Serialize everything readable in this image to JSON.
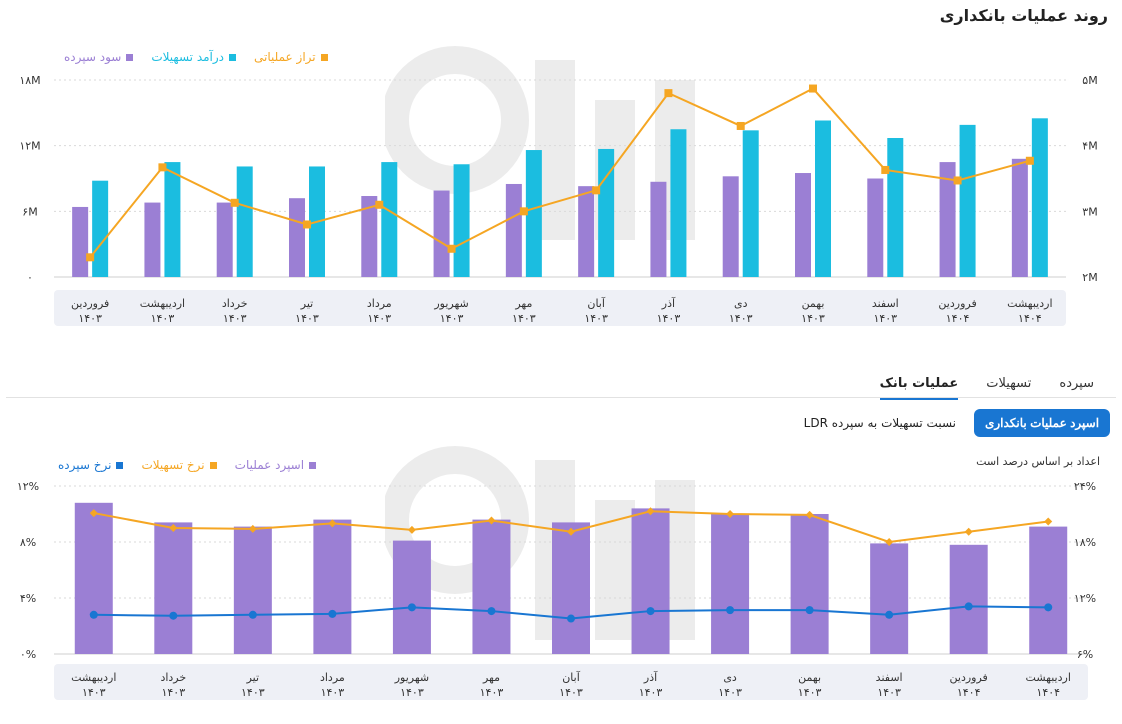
{
  "page_title": "روند عملیات بانکداری",
  "chart_data": [
    {
      "type": "bar",
      "categories": [
        {
          "month": "فروردین",
          "year": "۱۴۰۳"
        },
        {
          "month": "اردیبهشت",
          "year": "۱۴۰۳"
        },
        {
          "month": "خرداد",
          "year": "۱۴۰۳"
        },
        {
          "month": "تیر",
          "year": "۱۴۰۳"
        },
        {
          "month": "مرداد",
          "year": "۱۴۰۳"
        },
        {
          "month": "شهریور",
          "year": "۱۴۰۳"
        },
        {
          "month": "مهر",
          "year": "۱۴۰۳"
        },
        {
          "month": "آبان",
          "year": "۱۴۰۳"
        },
        {
          "month": "آذر",
          "year": "۱۴۰۳"
        },
        {
          "month": "دی",
          "year": "۱۴۰۳"
        },
        {
          "month": "بهمن",
          "year": "۱۴۰۳"
        },
        {
          "month": "اسفند",
          "year": "۱۴۰۳"
        },
        {
          "month": "فروردین",
          "year": "۱۴۰۴"
        },
        {
          "month": "اردیبهشت",
          "year": "۱۴۰۴"
        }
      ],
      "series": [
        {
          "name": "سود سپرده",
          "kind": "bar",
          "axis": "left",
          "color": "#9b7fd4",
          "values": [
            6.4,
            6.8,
            6.8,
            7.2,
            7.4,
            7.9,
            8.5,
            8.3,
            8.7,
            9.2,
            9.5,
            9.0,
            10.5,
            10.8
          ]
        },
        {
          "name": "درآمد تسهیلات",
          "kind": "bar",
          "axis": "left",
          "color": "#1bbde0",
          "values": [
            8.8,
            10.5,
            10.1,
            10.1,
            10.5,
            10.3,
            11.6,
            11.7,
            13.5,
            13.4,
            14.3,
            12.7,
            13.9,
            14.5
          ]
        },
        {
          "name": "تراز عملیاتی",
          "kind": "line",
          "axis": "right",
          "color": "#f5a623",
          "values": [
            2.3,
            3.67,
            3.13,
            2.8,
            3.1,
            2.43,
            3.0,
            3.32,
            4.8,
            4.3,
            4.87,
            3.63,
            3.47,
            3.77
          ]
        }
      ],
      "y_left": {
        "ticks": [
          "۰",
          "۶M",
          "۱۲M",
          "۱۸M"
        ],
        "ylim": [
          0,
          18
        ]
      },
      "y_right": {
        "ticks": [
          "۲M",
          "۳M",
          "۴M",
          "۵M"
        ],
        "ylim": [
          2,
          5
        ]
      },
      "legend_position": "top-right",
      "grid": true
    },
    {
      "type": "bar",
      "categories": [
        {
          "month": "اردیبهشت",
          "year": "۱۴۰۳"
        },
        {
          "month": "خرداد",
          "year": "۱۴۰۳"
        },
        {
          "month": "تیر",
          "year": "۱۴۰۳"
        },
        {
          "month": "مرداد",
          "year": "۱۴۰۳"
        },
        {
          "month": "شهریور",
          "year": "۱۴۰۳"
        },
        {
          "month": "مهر",
          "year": "۱۴۰۳"
        },
        {
          "month": "آبان",
          "year": "۱۴۰۳"
        },
        {
          "month": "آذر",
          "year": "۱۴۰۳"
        },
        {
          "month": "دی",
          "year": "۱۴۰۳"
        },
        {
          "month": "بهمن",
          "year": "۱۴۰۳"
        },
        {
          "month": "اسفند",
          "year": "۱۴۰۳"
        },
        {
          "month": "فروردین",
          "year": "۱۴۰۴"
        },
        {
          "month": "اردیبهشت",
          "year": "۱۴۰۴"
        }
      ],
      "series": [
        {
          "name": "اسپرد عملیات",
          "kind": "bar",
          "axis": "left",
          "color": "#9b7fd4",
          "values": [
            10.8,
            9.4,
            9.1,
            9.6,
            8.1,
            9.6,
            9.4,
            10.4,
            10.0,
            10.0,
            7.9,
            7.8,
            9.1
          ]
        },
        {
          "name": "نرخ تسهیلات",
          "kind": "line",
          "axis": "right",
          "color": "#f5a623",
          "values": [
            21.1,
            19.5,
            19.4,
            20.0,
            19.3,
            20.3,
            19.1,
            21.3,
            21.0,
            20.9,
            18.0,
            19.1,
            20.2
          ]
        },
        {
          "name": "نرخ سپرده",
          "kind": "line",
          "axis": "right",
          "color": "#1976d2",
          "values": [
            10.2,
            10.1,
            10.2,
            10.3,
            11.0,
            10.6,
            9.8,
            10.6,
            10.7,
            10.7,
            10.2,
            11.1,
            11.0
          ]
        }
      ],
      "y_left": {
        "ticks": [
          "۰%",
          "۴%",
          "۸%",
          "۱۲%"
        ],
        "ylim": [
          0,
          12
        ]
      },
      "y_right": {
        "ticks": [
          "۶%",
          "۱۲%",
          "۱۸%",
          "۲۴%"
        ],
        "ylim": [
          6,
          24
        ]
      },
      "note": "اعداد بر اساس درصد است",
      "legend_position": "top-right",
      "grid": true
    }
  ],
  "tabs": [
    {
      "label": "سپرده",
      "active": false
    },
    {
      "label": "تسهیلات",
      "active": false
    },
    {
      "label": "عملیات بانک",
      "active": true
    }
  ],
  "buttons": {
    "primary": "اسپرد عملیات بانکداری",
    "secondary": "نسبت تسهیلات به سپرده LDR"
  },
  "colors": {
    "accent": "#1976d2",
    "purple": "#9b7fd4",
    "cyan": "#1bbde0",
    "orange": "#f5a623"
  }
}
